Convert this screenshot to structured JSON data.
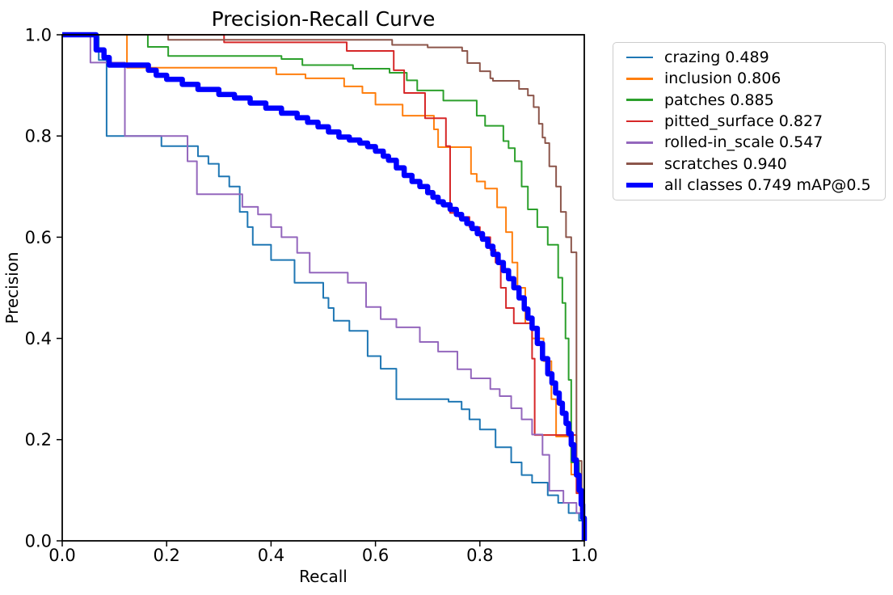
{
  "figure": {
    "background_color": "#ffffff",
    "axes_color": "#000000"
  },
  "chart_data": {
    "type": "line",
    "title": "Precision-Recall Curve",
    "xlabel": "Recall",
    "ylabel": "Precision",
    "xlim": [
      0.0,
      1.0
    ],
    "ylim": [
      0.0,
      1.0
    ],
    "x_ticks": [
      "0.0",
      "0.2",
      "0.4",
      "0.6",
      "0.8",
      "1.0"
    ],
    "y_ticks": [
      "0.0",
      "0.2",
      "0.4",
      "0.6",
      "0.8",
      "1.0"
    ],
    "grid": false,
    "legend_position": "outside-top-right",
    "step_interpolation": "step-after",
    "series": [
      {
        "name": "crazing",
        "ap": 0.489,
        "legend_label": "crazing 0.489",
        "color": "#1f77b4",
        "line_width": 2,
        "points": [
          [
            0.0,
            1.0
          ],
          [
            0.07,
            0.95
          ],
          [
            0.085,
            0.8
          ],
          [
            0.19,
            0.78
          ],
          [
            0.26,
            0.76
          ],
          [
            0.28,
            0.745
          ],
          [
            0.3,
            0.72
          ],
          [
            0.32,
            0.7
          ],
          [
            0.34,
            0.65
          ],
          [
            0.355,
            0.62
          ],
          [
            0.365,
            0.585
          ],
          [
            0.4,
            0.555
          ],
          [
            0.445,
            0.51
          ],
          [
            0.5,
            0.48
          ],
          [
            0.51,
            0.46
          ],
          [
            0.52,
            0.435
          ],
          [
            0.55,
            0.415
          ],
          [
            0.585,
            0.365
          ],
          [
            0.61,
            0.34
          ],
          [
            0.64,
            0.28
          ],
          [
            0.74,
            0.275
          ],
          [
            0.765,
            0.26
          ],
          [
            0.78,
            0.24
          ],
          [
            0.8,
            0.22
          ],
          [
            0.83,
            0.185
          ],
          [
            0.86,
            0.155
          ],
          [
            0.88,
            0.13
          ],
          [
            0.9,
            0.115
          ],
          [
            0.93,
            0.09
          ],
          [
            0.95,
            0.075
          ],
          [
            0.97,
            0.055
          ],
          [
            0.99,
            0.04
          ],
          [
            1.0,
            0.02
          ]
        ]
      },
      {
        "name": "inclusion",
        "ap": 0.806,
        "legend_label": "inclusion 0.806",
        "color": "#ff7f0e",
        "line_width": 2,
        "points": [
          [
            0.0,
            1.0
          ],
          [
            0.124,
            0.935
          ],
          [
            0.41,
            0.922
          ],
          [
            0.466,
            0.914
          ],
          [
            0.54,
            0.898
          ],
          [
            0.575,
            0.885
          ],
          [
            0.6,
            0.862
          ],
          [
            0.652,
            0.84
          ],
          [
            0.712,
            0.813
          ],
          [
            0.72,
            0.778
          ],
          [
            0.783,
            0.725
          ],
          [
            0.794,
            0.71
          ],
          [
            0.81,
            0.696
          ],
          [
            0.833,
            0.659
          ],
          [
            0.85,
            0.61
          ],
          [
            0.862,
            0.55
          ],
          [
            0.872,
            0.5
          ],
          [
            0.887,
            0.43
          ],
          [
            0.9,
            0.4
          ],
          [
            0.922,
            0.355
          ],
          [
            0.937,
            0.28
          ],
          [
            0.946,
            0.206
          ],
          [
            0.975,
            0.131
          ],
          [
            0.993,
            0.06
          ],
          [
            1.0,
            0.03
          ]
        ]
      },
      {
        "name": "patches",
        "ap": 0.885,
        "legend_label": "patches 0.885",
        "color": "#2ca02c",
        "line_width": 2,
        "points": [
          [
            0.0,
            1.0
          ],
          [
            0.164,
            0.976
          ],
          [
            0.203,
            0.958
          ],
          [
            0.42,
            0.952
          ],
          [
            0.46,
            0.94
          ],
          [
            0.557,
            0.933
          ],
          [
            0.627,
            0.925
          ],
          [
            0.66,
            0.91
          ],
          [
            0.68,
            0.89
          ],
          [
            0.73,
            0.87
          ],
          [
            0.794,
            0.84
          ],
          [
            0.81,
            0.82
          ],
          [
            0.845,
            0.79
          ],
          [
            0.855,
            0.776
          ],
          [
            0.867,
            0.75
          ],
          [
            0.88,
            0.7
          ],
          [
            0.892,
            0.655
          ],
          [
            0.91,
            0.62
          ],
          [
            0.93,
            0.585
          ],
          [
            0.95,
            0.52
          ],
          [
            0.958,
            0.47
          ],
          [
            0.964,
            0.4
          ],
          [
            0.97,
            0.318
          ],
          [
            0.975,
            0.155
          ],
          [
            0.99,
            0.1
          ],
          [
            1.0,
            0.04
          ]
        ]
      },
      {
        "name": "pitted_surface",
        "ap": 0.827,
        "legend_label": "pitted_surface 0.827",
        "color": "#d62728",
        "line_width": 2,
        "points": [
          [
            0.0,
            1.0
          ],
          [
            0.31,
            0.985
          ],
          [
            0.545,
            0.968
          ],
          [
            0.635,
            0.93
          ],
          [
            0.655,
            0.885
          ],
          [
            0.695,
            0.835
          ],
          [
            0.735,
            0.78
          ],
          [
            0.743,
            0.648
          ],
          [
            0.76,
            0.64
          ],
          [
            0.78,
            0.62
          ],
          [
            0.8,
            0.6
          ],
          [
            0.82,
            0.575
          ],
          [
            0.83,
            0.55
          ],
          [
            0.84,
            0.5
          ],
          [
            0.85,
            0.46
          ],
          [
            0.865,
            0.43
          ],
          [
            0.9,
            0.36
          ],
          [
            0.905,
            0.209
          ],
          [
            0.985,
            0.094
          ],
          [
            0.995,
            0.05
          ],
          [
            1.0,
            0.03
          ]
        ]
      },
      {
        "name": "rolled-in_scale",
        "ap": 0.547,
        "legend_label": "rolled-in_scale 0.547",
        "color": "#9467bd",
        "line_width": 2,
        "points": [
          [
            0.0,
            1.0
          ],
          [
            0.054,
            0.945
          ],
          [
            0.12,
            0.8
          ],
          [
            0.24,
            0.75
          ],
          [
            0.258,
            0.685
          ],
          [
            0.345,
            0.66
          ],
          [
            0.375,
            0.645
          ],
          [
            0.4,
            0.62
          ],
          [
            0.42,
            0.6
          ],
          [
            0.45,
            0.569
          ],
          [
            0.474,
            0.53
          ],
          [
            0.547,
            0.51
          ],
          [
            0.582,
            0.462
          ],
          [
            0.61,
            0.438
          ],
          [
            0.64,
            0.422
          ],
          [
            0.685,
            0.393
          ],
          [
            0.72,
            0.374
          ],
          [
            0.757,
            0.339
          ],
          [
            0.783,
            0.321
          ],
          [
            0.82,
            0.3
          ],
          [
            0.838,
            0.286
          ],
          [
            0.86,
            0.262
          ],
          [
            0.88,
            0.24
          ],
          [
            0.9,
            0.21
          ],
          [
            0.92,
            0.17
          ],
          [
            0.933,
            0.099
          ],
          [
            0.96,
            0.075
          ],
          [
            0.985,
            0.055
          ],
          [
            1.0,
            0.03
          ]
        ]
      },
      {
        "name": "scratches",
        "ap": 0.94,
        "legend_label": "scratches 0.940",
        "color": "#8c564b",
        "line_width": 2,
        "points": [
          [
            0.0,
            1.0
          ],
          [
            0.203,
            0.99
          ],
          [
            0.632,
            0.98
          ],
          [
            0.7,
            0.975
          ],
          [
            0.766,
            0.968
          ],
          [
            0.776,
            0.944
          ],
          [
            0.8,
            0.928
          ],
          [
            0.82,
            0.914
          ],
          [
            0.825,
            0.909
          ],
          [
            0.875,
            0.893
          ],
          [
            0.892,
            0.88
          ],
          [
            0.903,
            0.857
          ],
          [
            0.913,
            0.824
          ],
          [
            0.92,
            0.797
          ],
          [
            0.925,
            0.786
          ],
          [
            0.933,
            0.74
          ],
          [
            0.946,
            0.7
          ],
          [
            0.955,
            0.65
          ],
          [
            0.965,
            0.6
          ],
          [
            0.975,
            0.57
          ],
          [
            0.985,
            0.158
          ],
          [
            0.995,
            0.08
          ],
          [
            1.0,
            0.03
          ]
        ]
      },
      {
        "name": "all classes",
        "ap": 0.749,
        "metric": "mAP@0.5",
        "legend_label": "all classes 0.749 mAP@0.5",
        "color": "#0000ff",
        "line_width": 6,
        "points": [
          [
            0.0,
            1.0
          ],
          [
            0.065,
            0.97
          ],
          [
            0.08,
            0.955
          ],
          [
            0.09,
            0.94
          ],
          [
            0.165,
            0.93
          ],
          [
            0.18,
            0.92
          ],
          [
            0.2,
            0.912
          ],
          [
            0.23,
            0.902
          ],
          [
            0.26,
            0.892
          ],
          [
            0.3,
            0.882
          ],
          [
            0.33,
            0.875
          ],
          [
            0.36,
            0.865
          ],
          [
            0.39,
            0.855
          ],
          [
            0.42,
            0.845
          ],
          [
            0.45,
            0.836
          ],
          [
            0.47,
            0.827
          ],
          [
            0.49,
            0.818
          ],
          [
            0.51,
            0.808
          ],
          [
            0.53,
            0.798
          ],
          [
            0.55,
            0.792
          ],
          [
            0.57,
            0.786
          ],
          [
            0.585,
            0.779
          ],
          [
            0.6,
            0.77
          ],
          [
            0.615,
            0.76
          ],
          [
            0.625,
            0.752
          ],
          [
            0.64,
            0.737
          ],
          [
            0.655,
            0.722
          ],
          [
            0.67,
            0.71
          ],
          [
            0.685,
            0.7
          ],
          [
            0.7,
            0.688
          ],
          [
            0.71,
            0.679
          ],
          [
            0.72,
            0.67
          ],
          [
            0.73,
            0.664
          ],
          [
            0.743,
            0.655
          ],
          [
            0.755,
            0.645
          ],
          [
            0.765,
            0.636
          ],
          [
            0.775,
            0.627
          ],
          [
            0.785,
            0.617
          ],
          [
            0.795,
            0.607
          ],
          [
            0.805,
            0.596
          ],
          [
            0.815,
            0.582
          ],
          [
            0.825,
            0.566
          ],
          [
            0.835,
            0.55
          ],
          [
            0.845,
            0.534
          ],
          [
            0.855,
            0.518
          ],
          [
            0.865,
            0.5
          ],
          [
            0.875,
            0.48
          ],
          [
            0.885,
            0.458
          ],
          [
            0.892,
            0.44
          ],
          [
            0.9,
            0.42
          ],
          [
            0.91,
            0.39
          ],
          [
            0.92,
            0.36
          ],
          [
            0.93,
            0.33
          ],
          [
            0.938,
            0.312
          ],
          [
            0.945,
            0.292
          ],
          [
            0.952,
            0.272
          ],
          [
            0.958,
            0.252
          ],
          [
            0.965,
            0.232
          ],
          [
            0.97,
            0.212
          ],
          [
            0.975,
            0.19
          ],
          [
            0.98,
            0.16
          ],
          [
            0.985,
            0.13
          ],
          [
            0.99,
            0.1
          ],
          [
            0.994,
            0.072
          ],
          [
            0.997,
            0.045
          ],
          [
            1.0,
            0.0
          ]
        ]
      }
    ]
  }
}
